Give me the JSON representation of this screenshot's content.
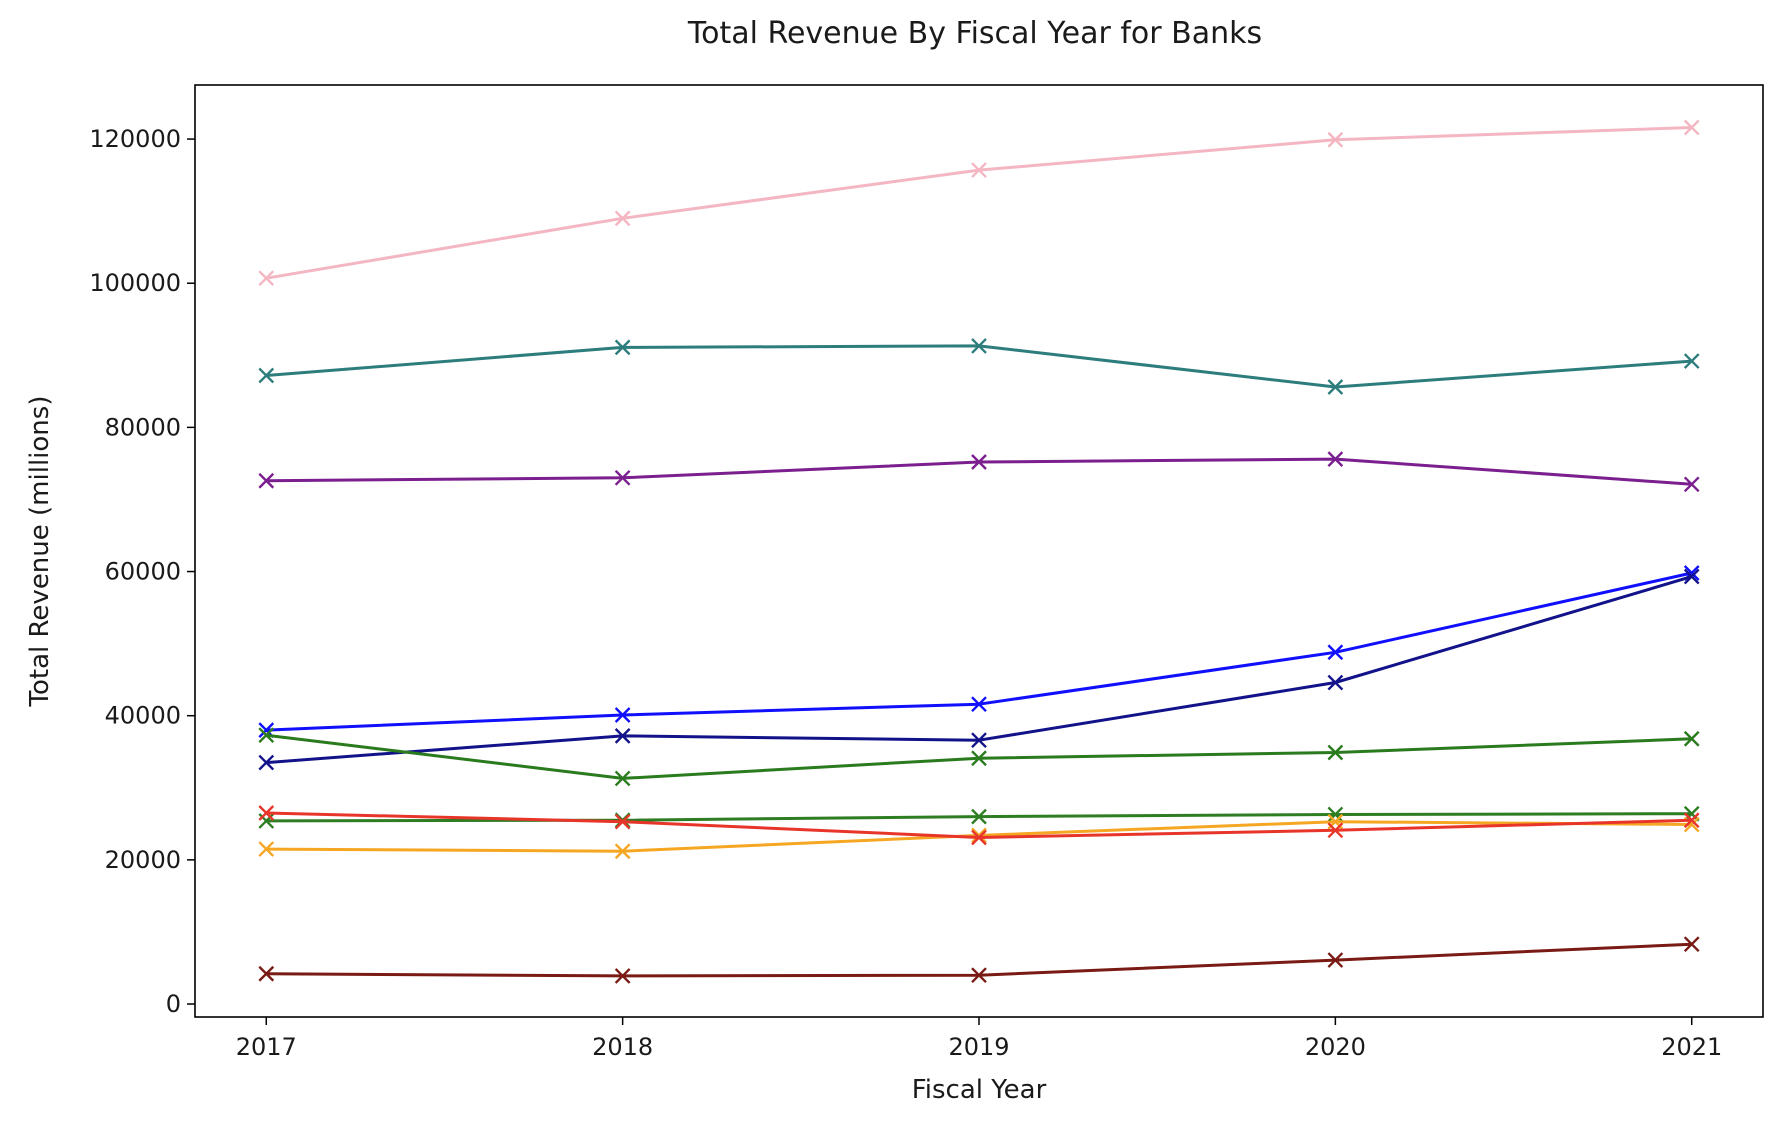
{
  "chart_data": {
    "type": "line",
    "title": "Total Revenue By Fiscal Year for Banks",
    "xlabel": "Fiscal Year",
    "ylabel": "Total Revenue (millions)",
    "x": [
      2017,
      2018,
      2019,
      2020,
      2021
    ],
    "x_tick_labels": [
      "2017",
      "2018",
      "2019",
      "2020",
      "2021"
    ],
    "y_ticks": [
      0,
      20000,
      40000,
      60000,
      80000,
      100000,
      120000
    ],
    "y_tick_labels": [
      "0",
      "20000",
      "40000",
      "60000",
      "80000",
      "100000",
      "120000"
    ],
    "xlim": [
      2016.8,
      2021.2
    ],
    "ylim": [
      -1800,
      127500
    ],
    "grid": false,
    "marker": "x",
    "series": [
      {
        "color": "#f4b6c2",
        "values": [
          100700,
          109000,
          115700,
          119900,
          121600
        ]
      },
      {
        "color": "#2e7d7d",
        "values": [
          87200,
          91100,
          91300,
          85600,
          89200
        ]
      },
      {
        "color": "#7b1f8f",
        "values": [
          72600,
          73000,
          75200,
          75600,
          72100
        ]
      },
      {
        "color": "#1010ff",
        "values": [
          38000,
          40100,
          41600,
          48800,
          59800
        ]
      },
      {
        "color": "#12128a",
        "values": [
          33500,
          37200,
          36600,
          44600,
          59300
        ]
      },
      {
        "color": "#2a7a1e",
        "values": [
          37300,
          31300,
          34100,
          34900,
          36800
        ]
      },
      {
        "color": "#2f7d23",
        "values": [
          25400,
          25500,
          26000,
          26300,
          26400
        ]
      },
      {
        "color": "#f5a623",
        "values": [
          21500,
          21200,
          23400,
          25300,
          24900
        ]
      },
      {
        "color": "#e8352a",
        "values": [
          26500,
          25300,
          23100,
          24100,
          25500
        ]
      },
      {
        "color": "#7a1a14",
        "values": [
          4200,
          3900,
          4000,
          6100,
          8300
        ]
      }
    ]
  }
}
